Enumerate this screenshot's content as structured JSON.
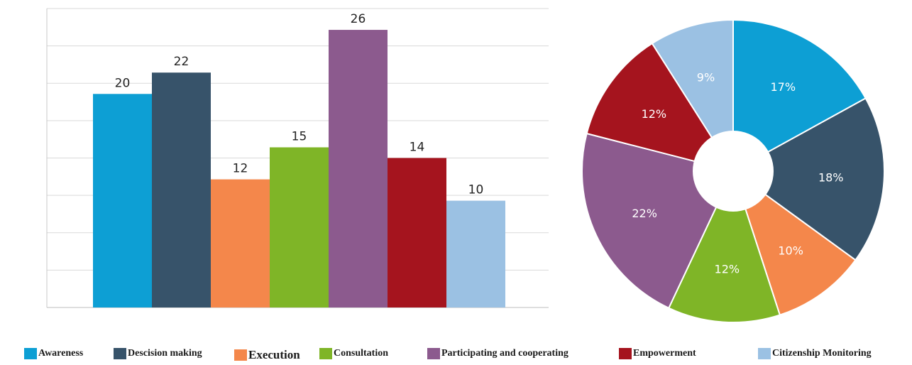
{
  "chart_data": [
    {
      "type": "bar",
      "categories": [
        "Awareness",
        "Descision making",
        "Execution",
        "Consultation",
        "Participating and cooperating",
        "Empowerment",
        "Citizenship Monitoring"
      ],
      "values": [
        20,
        22,
        12,
        15,
        26,
        14,
        10
      ],
      "colors": [
        "#0d9fd4",
        "#37536a",
        "#f4874b",
        "#7fb527",
        "#8c5a8e",
        "#a5141e",
        "#9bc1e3"
      ],
      "ylim": [
        0,
        28
      ],
      "grid": true,
      "legend": "bottom"
    },
    {
      "type": "pie",
      "categories": [
        "Awareness",
        "Descision making",
        "Execution",
        "Consultation",
        "Participating and cooperating",
        "Empowerment",
        "Citizenship Monitoring"
      ],
      "values": [
        17,
        18,
        10,
        12,
        22,
        12,
        9
      ],
      "labels": [
        "17%",
        "18%",
        "10%",
        "12%",
        "22%",
        "12%",
        "9%"
      ],
      "colors": [
        "#0d9fd4",
        "#37536a",
        "#f4874b",
        "#7fb527",
        "#8c5a8e",
        "#a5141e",
        "#9bc1e3"
      ],
      "donut": true
    }
  ],
  "legend": {
    "items": [
      {
        "label": "Awareness",
        "color": "#0d9fd4"
      },
      {
        "label": "Descision making",
        "color": "#37536a"
      },
      {
        "label": "Execution",
        "color": "#f4874b"
      },
      {
        "label": "Consultation",
        "color": "#7fb527"
      },
      {
        "label": "Participating and cooperating",
        "color": "#8c5a8e"
      },
      {
        "label": "Empowerment",
        "color": "#a5141e"
      },
      {
        "label": "Citizenship Monitoring",
        "color": "#9bc1e3"
      }
    ]
  }
}
